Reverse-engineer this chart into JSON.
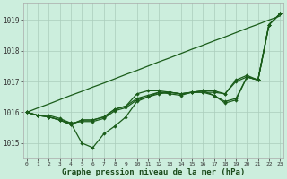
{
  "x": [
    0,
    1,
    2,
    3,
    4,
    5,
    6,
    7,
    8,
    9,
    10,
    11,
    12,
    13,
    14,
    15,
    16,
    17,
    18,
    19,
    20,
    21,
    22,
    23
  ],
  "straight": [
    1016.0,
    1016.14,
    1016.27,
    1016.41,
    1016.55,
    1016.68,
    1016.82,
    1016.95,
    1017.09,
    1017.23,
    1017.36,
    1017.5,
    1017.64,
    1017.77,
    1017.91,
    1018.05,
    1018.18,
    1018.32,
    1018.45,
    1018.59,
    1018.73,
    1018.86,
    1019.0,
    1019.13
  ],
  "series_dip": [
    1016.0,
    1015.9,
    1015.9,
    1015.8,
    1015.65,
    1015.0,
    1014.85,
    1015.3,
    1015.55,
    1015.85,
    1016.35,
    1016.5,
    1016.65,
    1016.6,
    1016.55,
    1016.65,
    1016.65,
    1016.55,
    1016.35,
    1016.45,
    1017.15,
    1017.05,
    1018.85,
    1019.2
  ],
  "series_mid1": [
    1016.0,
    1015.9,
    1015.85,
    1015.75,
    1015.6,
    1015.75,
    1015.75,
    1015.85,
    1016.1,
    1016.2,
    1016.45,
    1016.55,
    1016.65,
    1016.65,
    1016.6,
    1016.65,
    1016.7,
    1016.7,
    1016.6,
    1017.05,
    1017.2,
    1017.05,
    1018.85,
    1019.2
  ],
  "series_flat": [
    1016.0,
    1015.9,
    1015.85,
    1015.75,
    1015.65,
    1015.7,
    1015.7,
    1015.8,
    1016.05,
    1016.15,
    1016.4,
    1016.5,
    1016.6,
    1016.65,
    1016.6,
    1016.65,
    1016.65,
    1016.65,
    1016.6,
    1017.0,
    1017.15,
    1017.05,
    1018.85,
    1019.2
  ],
  "series_high": [
    1016.0,
    1015.9,
    1015.85,
    1015.75,
    1015.6,
    1015.75,
    1015.75,
    1015.85,
    1016.1,
    1016.2,
    1016.6,
    1016.7,
    1016.7,
    1016.65,
    1016.6,
    1016.65,
    1016.7,
    1016.55,
    1016.3,
    1016.4,
    1017.15,
    1017.05,
    1018.85,
    1019.2
  ],
  "line_color": "#1a5c1a",
  "bg_color": "#cceedd",
  "grid_color": "#aaccbb",
  "ylabel_ticks": [
    1015,
    1016,
    1017,
    1018,
    1019
  ],
  "xlabel": "Graphe pression niveau de la mer (hPa)",
  "ylim": [
    1014.5,
    1019.55
  ],
  "xlim": [
    -0.3,
    23.3
  ]
}
